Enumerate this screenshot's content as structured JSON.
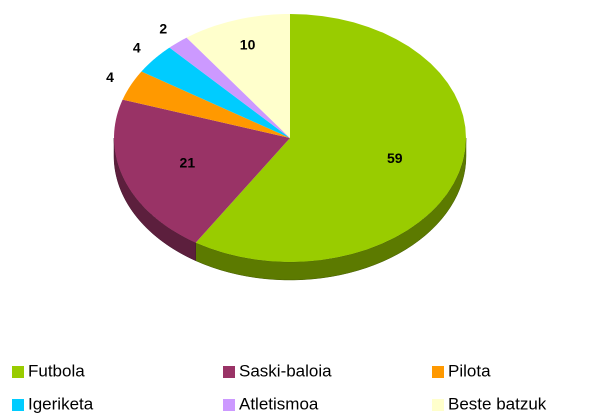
{
  "chart_data": {
    "type": "pie",
    "categories": [
      "Futbola",
      "Saski-baloia",
      "Pilota",
      "Igeriketa",
      "Atletismoa",
      "Beste batzuk"
    ],
    "values": [
      59,
      21,
      4,
      4,
      2,
      10
    ],
    "colors": [
      "#99cc00",
      "#993366",
      "#ff9900",
      "#00ccff",
      "#cc99ff",
      "#ffffcc"
    ],
    "legend": "bottom"
  }
}
